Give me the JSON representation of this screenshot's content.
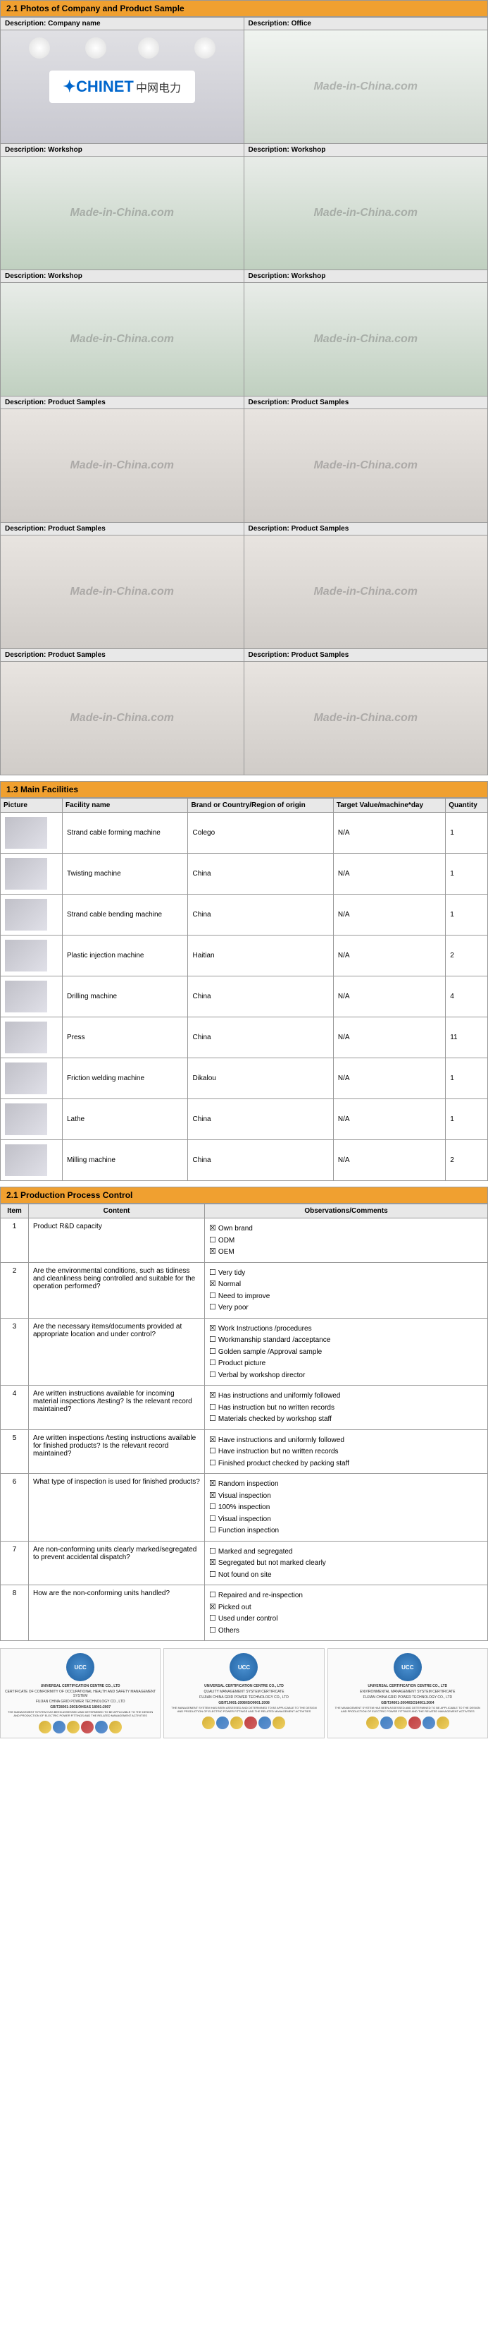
{
  "sections": {
    "photos": {
      "title": "2.1 Photos of Company and Product Sample",
      "watermark": "Made-in-China.com",
      "company_logo": {
        "en": "CHINET",
        "cn": "中网电力"
      },
      "cells": [
        {
          "label": "Description: Company name",
          "type": "logo"
        },
        {
          "label": "Description: Office",
          "type": "office"
        },
        {
          "label": "Description: Workshop",
          "type": "workshop"
        },
        {
          "label": "Description: Workshop",
          "type": "workshop"
        },
        {
          "label": "Description: Workshop",
          "type": "workshop"
        },
        {
          "label": "Description: Workshop",
          "type": "workshop"
        },
        {
          "label": "Description: Product Samples",
          "type": "product"
        },
        {
          "label": "Description: Product Samples",
          "type": "product"
        },
        {
          "label": "Description: Product Samples",
          "type": "product"
        },
        {
          "label": "Description: Product Samples",
          "type": "product"
        },
        {
          "label": "Description: Product Samples",
          "type": "product"
        },
        {
          "label": "Description: Product Samples",
          "type": "product"
        }
      ]
    },
    "facilities": {
      "title": "1.3 Main Facilities",
      "headers": [
        "Picture",
        "Facility name",
        "Brand or Country/Region of origin",
        "Target Value/machine*day",
        "Quantity"
      ],
      "rows": [
        {
          "name": "Strand cable forming machine",
          "brand": "Colego",
          "target": "N/A",
          "qty": "1"
        },
        {
          "name": "Twisting machine",
          "brand": "China",
          "target": "N/A",
          "qty": "1"
        },
        {
          "name": "Strand cable bending machine",
          "brand": "China",
          "target": "N/A",
          "qty": "1"
        },
        {
          "name": "Plastic injection machine",
          "brand": "Haitian",
          "target": "N/A",
          "qty": "2"
        },
        {
          "name": "Drilling machine",
          "brand": "China",
          "target": "N/A",
          "qty": "4"
        },
        {
          "name": "Press",
          "brand": "China",
          "target": "N/A",
          "qty": "11"
        },
        {
          "name": "Friction welding machine",
          "brand": "Dikalou",
          "target": "N/A",
          "qty": "1"
        },
        {
          "name": "Lathe",
          "brand": "China",
          "target": "N/A",
          "qty": "1"
        },
        {
          "name": "Milling machine",
          "brand": "China",
          "target": "N/A",
          "qty": "2"
        }
      ]
    },
    "process": {
      "title": "2.1 Production Process Control",
      "headers": [
        "Item",
        "Content",
        "Observations/Comments"
      ],
      "rows": [
        {
          "item": "1",
          "content": "Product R&D capacity",
          "obs": [
            {
              "t": "Own brand",
              "c": true
            },
            {
              "t": "ODM",
              "c": false
            },
            {
              "t": "OEM",
              "c": true
            }
          ]
        },
        {
          "item": "2",
          "content": "Are the environmental conditions, such as tidiness and cleanliness being controlled and suitable for the operation performed?",
          "obs": [
            {
              "t": "Very tidy",
              "c": false
            },
            {
              "t": "Normal",
              "c": true
            },
            {
              "t": "Need to improve",
              "c": false
            },
            {
              "t": "Very poor",
              "c": false
            }
          ]
        },
        {
          "item": "3",
          "content": "Are the necessary items/documents provided at appropriate location and under control?",
          "obs": [
            {
              "t": "Work Instructions /procedures",
              "c": true
            },
            {
              "t": "Workmanship standard /acceptance",
              "c": false
            },
            {
              "t": "Golden sample /Approval sample",
              "c": false
            },
            {
              "t": "Product picture",
              "c": false
            },
            {
              "t": "Verbal by workshop director",
              "c": false
            }
          ]
        },
        {
          "item": "4",
          "content": "Are written instructions available for incoming material inspections /testing? Is the relevant record maintained?",
          "obs": [
            {
              "t": "Has instructions and uniformly followed",
              "c": true
            },
            {
              "t": "Has instruction but no written records",
              "c": false
            },
            {
              "t": "Materials checked by workshop staff",
              "c": false
            }
          ]
        },
        {
          "item": "5",
          "content": "Are written inspections /testing instructions available for finished products? Is the relevant record maintained?",
          "obs": [
            {
              "t": "Have instructions and uniformly followed",
              "c": true
            },
            {
              "t": "Have instruction but no written records",
              "c": false
            },
            {
              "t": "Finished product checked by packing staff",
              "c": false
            }
          ]
        },
        {
          "item": "6",
          "content": "What type of inspection is used for finished products?",
          "obs": [
            {
              "t": "Random inspection",
              "c": true
            },
            {
              "t": "Visual inspection",
              "c": true
            },
            {
              "t": "100% inspection",
              "c": false
            },
            {
              "t": "Visual inspection",
              "c": false
            },
            {
              "t": "Function inspection",
              "c": false
            }
          ]
        },
        {
          "item": "7",
          "content": "Are non-conforming units clearly marked/segregated to prevent accidental dispatch?",
          "obs": [
            {
              "t": "Marked and segregated",
              "c": false
            },
            {
              "t": "Segregated but not marked clearly",
              "c": true
            },
            {
              "t": "Not found on site",
              "c": false
            }
          ]
        },
        {
          "item": "8",
          "content": "How are the non-conforming units handled?",
          "obs": [
            {
              "t": "Repaired and re-inspection",
              "c": false
            },
            {
              "t": "Picked out",
              "c": true
            },
            {
              "t": "Used under control",
              "c": false
            },
            {
              "t": "Others",
              "c": false
            }
          ]
        }
      ]
    },
    "certs": [
      {
        "badge": "UCC",
        "title": "UNIVERSAL CERTIFICATION CENTRE CO., LTD",
        "sub": "CERTIFICATE OF CONFORMITY OF OCCUPATIONAL HEALTH AND SAFETY MANAGEMENT SYSTEM",
        "company": "FUJIAN CHINA GRID POWER TECHNOLOGY CO., LTD",
        "std": "GB/T28001-2001/OHSAS 18001:2007"
      },
      {
        "badge": "UCC",
        "title": "UNIVERSAL CERTIFICATION CENTRE CO., LTD",
        "sub": "QUALITY MANAGEMENT SYSTEM CERTIFICATE",
        "company": "FUJIAN CHINA GRID POWER TECHNOLOGY CO., LTD",
        "std": "GB/T19001-2008/ISO9001:2008"
      },
      {
        "badge": "UCC",
        "title": "UNIVERSAL CERTIFICATION CENTRE CO., LTD",
        "sub": "ENVIRONMENTAL MANAGEMENT SYSTEM CERTIFICATE",
        "company": "FUJIAN CHINA GRID POWER TECHNOLOGY CO., LTD",
        "std": "GB/T24001-2004/ISO14001:2004"
      }
    ]
  }
}
